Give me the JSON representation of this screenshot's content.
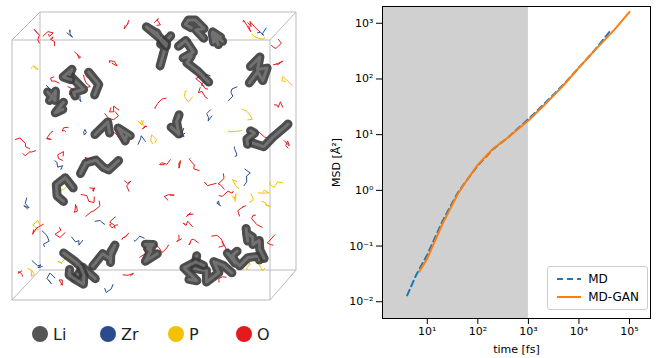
{
  "chart_data": {
    "type": "line",
    "x_label": "time [fs]",
    "y_label": "MSD [Å²]",
    "log": true,
    "xlim": [
      1.3,
      260000
    ],
    "ylim": [
      0.005,
      2000
    ],
    "xticks": [
      {
        "value": 10,
        "label": "10¹"
      },
      {
        "value": 100,
        "label": "10²"
      },
      {
        "value": 1000,
        "label": "10³"
      },
      {
        "value": 10000,
        "label": "10⁴"
      },
      {
        "value": 100000,
        "label": "10⁵"
      }
    ],
    "yticks": [
      {
        "value": 0.01,
        "label": "10⁻²"
      },
      {
        "value": 0.1,
        "label": "10⁻¹"
      },
      {
        "value": 1,
        "label": "10⁰"
      },
      {
        "value": 10,
        "label": "10¹"
      },
      {
        "value": 100,
        "label": "10²"
      },
      {
        "value": 1000,
        "label": "10³"
      }
    ],
    "shaded_x": [
      1.3,
      1000
    ],
    "legend": "lower right",
    "series": [
      {
        "name": "MD",
        "color": "#1f77b4",
        "line_style": "dashed",
        "x": [
          4,
          6,
          10,
          20,
          40,
          60,
          100,
          200,
          400,
          1000,
          2000,
          5000,
          10000,
          20000,
          40000
        ],
        "values": [
          0.013,
          0.03,
          0.07,
          0.28,
          0.9,
          1.5,
          2.8,
          5.5,
          9,
          19,
          35,
          80,
          160,
          320,
          700
        ]
      },
      {
        "name": "MD-GAN",
        "color": "#ff7f0e",
        "line_style": "solid",
        "x": [
          7,
          10,
          20,
          40,
          60,
          100,
          200,
          400,
          1000,
          2000,
          5000,
          10000,
          20000,
          50000,
          100000
        ],
        "values": [
          0.035,
          0.06,
          0.25,
          0.85,
          1.5,
          2.9,
          5.6,
          9,
          18,
          33,
          78,
          160,
          320,
          760,
          1600
        ]
      }
    ]
  },
  "structure_legend": [
    {
      "label": "Li",
      "color": "#555555"
    },
    {
      "label": "Zr",
      "color": "#2b4c8c"
    },
    {
      "label": "P",
      "color": "#f2c200"
    },
    {
      "label": "O",
      "color": "#e41a1c"
    }
  ]
}
